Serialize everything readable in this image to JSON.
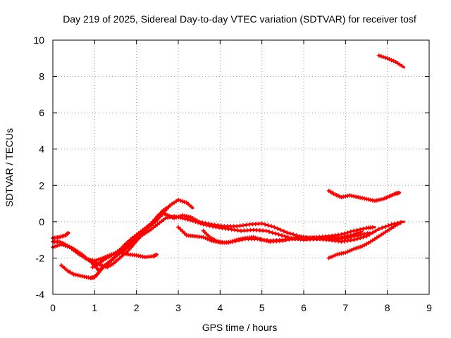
{
  "chart_data": {
    "type": "line",
    "title": "Day 219 of 2025, Sidereal Day-to-day VTEC variation (SDTVAR) for receiver tosf",
    "xlabel": "GPS time / hours",
    "ylabel": "SDTVAR / TECUs",
    "xlim": [
      0,
      9
    ],
    "ylim": [
      -4,
      10
    ],
    "xticks": [
      0,
      1,
      2,
      3,
      4,
      5,
      6,
      7,
      8,
      9
    ],
    "yticks": [
      -4,
      -2,
      0,
      2,
      4,
      6,
      8,
      10
    ],
    "grid": true,
    "marker": "plus",
    "color": "#ff0000",
    "series": [
      {
        "name": "arc-1",
        "points": [
          [
            0.0,
            -0.9
          ],
          [
            0.15,
            -0.85
          ],
          [
            0.3,
            -0.75
          ],
          [
            0.38,
            -0.6
          ]
        ]
      },
      {
        "name": "arc-2",
        "points": [
          [
            0.0,
            -1.4
          ],
          [
            0.2,
            -1.25
          ],
          [
            0.4,
            -1.4
          ],
          [
            0.6,
            -1.75
          ],
          [
            0.8,
            -2.05
          ],
          [
            1.0,
            -2.15
          ],
          [
            1.2,
            -2.0
          ],
          [
            1.4,
            -1.8
          ],
          [
            1.6,
            -1.7
          ],
          [
            1.8,
            -1.8
          ],
          [
            2.0,
            -1.85
          ],
          [
            2.2,
            -1.95
          ],
          [
            2.4,
            -1.9
          ],
          [
            2.5,
            -1.8
          ]
        ]
      },
      {
        "name": "arc-3",
        "points": [
          [
            0.0,
            -1.1
          ],
          [
            0.15,
            -1.1
          ],
          [
            0.3,
            -1.25
          ],
          [
            0.5,
            -1.5
          ],
          [
            0.7,
            -1.8
          ],
          [
            0.85,
            -2.1
          ],
          [
            1.0,
            -2.4
          ],
          [
            1.1,
            -2.7
          ],
          [
            1.2,
            -2.5
          ],
          [
            1.35,
            -2.2
          ],
          [
            1.5,
            -1.9
          ],
          [
            1.7,
            -1.6
          ],
          [
            1.9,
            -1.2
          ],
          [
            2.1,
            -0.7
          ],
          [
            2.3,
            -0.3
          ],
          [
            2.5,
            0.1
          ],
          [
            2.65,
            0.5
          ],
          [
            2.8,
            0.9
          ],
          [
            3.0,
            1.2
          ],
          [
            3.2,
            1.05
          ],
          [
            3.35,
            0.75
          ]
        ]
      },
      {
        "name": "arc-4",
        "points": [
          [
            0.2,
            -2.4
          ],
          [
            0.35,
            -2.7
          ],
          [
            0.5,
            -2.9
          ],
          [
            0.7,
            -3.0
          ],
          [
            0.9,
            -3.1
          ],
          [
            1.0,
            -3.05
          ],
          [
            1.1,
            -2.8
          ],
          [
            1.25,
            -2.4
          ],
          [
            1.45,
            -2.05
          ],
          [
            1.6,
            -1.65
          ],
          [
            1.8,
            -1.25
          ],
          [
            2.0,
            -0.8
          ],
          [
            2.2,
            -0.4
          ],
          [
            2.35,
            -0.1
          ],
          [
            2.5,
            0.3
          ],
          [
            2.65,
            0.65
          ],
          [
            2.8,
            0.85
          ]
        ]
      },
      {
        "name": "arc-5",
        "points": [
          [
            0.95,
            -2.5
          ],
          [
            1.1,
            -2.3
          ],
          [
            1.25,
            -2.05
          ],
          [
            1.4,
            -1.85
          ],
          [
            1.6,
            -1.55
          ],
          [
            1.75,
            -1.2
          ],
          [
            1.9,
            -0.9
          ],
          [
            2.1,
            -0.55
          ],
          [
            2.3,
            -0.2
          ],
          [
            2.5,
            0.2
          ],
          [
            2.6,
            0.5
          ],
          [
            2.75,
            0.35
          ],
          [
            2.9,
            0.2
          ],
          [
            3.1,
            0.35
          ],
          [
            3.3,
            0.25
          ],
          [
            3.5,
            0.0
          ],
          [
            3.8,
            -0.15
          ],
          [
            4.1,
            -0.25
          ],
          [
            4.4,
            -0.25
          ],
          [
            4.7,
            -0.15
          ],
          [
            5.0,
            -0.1
          ],
          [
            5.3,
            -0.3
          ],
          [
            5.6,
            -0.6
          ],
          [
            5.9,
            -0.8
          ],
          [
            6.1,
            -0.9
          ],
          [
            6.3,
            -0.85
          ],
          [
            6.6,
            -0.8
          ],
          [
            6.9,
            -0.7
          ],
          [
            7.2,
            -0.5
          ],
          [
            7.5,
            -0.35
          ],
          [
            7.7,
            -0.3
          ]
        ]
      },
      {
        "name": "arc-6",
        "points": [
          [
            1.0,
            -2.25
          ],
          [
            1.15,
            -2.4
          ],
          [
            1.3,
            -2.5
          ],
          [
            1.45,
            -2.3
          ],
          [
            1.6,
            -2.0
          ],
          [
            1.8,
            -1.6
          ],
          [
            1.95,
            -1.2
          ],
          [
            2.1,
            -0.8
          ],
          [
            2.3,
            -0.5
          ],
          [
            2.5,
            -0.15
          ],
          [
            2.7,
            0.2
          ],
          [
            2.9,
            0.3
          ],
          [
            3.1,
            0.2
          ],
          [
            3.35,
            0.05
          ],
          [
            3.6,
            -0.15
          ],
          [
            3.9,
            -0.3
          ],
          [
            4.2,
            -0.4
          ],
          [
            4.5,
            -0.5
          ],
          [
            4.8,
            -0.45
          ],
          [
            5.1,
            -0.5
          ],
          [
            5.4,
            -0.7
          ],
          [
            5.7,
            -0.9
          ],
          [
            6.0,
            -1.0
          ],
          [
            6.3,
            -0.95
          ],
          [
            6.6,
            -0.9
          ],
          [
            6.9,
            -0.85
          ],
          [
            7.2,
            -0.7
          ],
          [
            7.4,
            -0.55
          ]
        ]
      },
      {
        "name": "arc-7",
        "points": [
          [
            3.0,
            -0.3
          ],
          [
            3.2,
            -0.75
          ],
          [
            3.4,
            -0.8
          ],
          [
            3.6,
            -0.85
          ],
          [
            3.8,
            -1.05
          ],
          [
            4.0,
            -1.15
          ],
          [
            4.2,
            -1.15
          ],
          [
            4.4,
            -1.0
          ],
          [
            4.6,
            -0.9
          ],
          [
            4.8,
            -0.85
          ],
          [
            5.0,
            -1.0
          ],
          [
            5.2,
            -1.1
          ],
          [
            5.5,
            -1.05
          ],
          [
            5.8,
            -0.9
          ],
          [
            6.0,
            -0.85
          ],
          [
            6.3,
            -0.9
          ],
          [
            6.6,
            -1.0
          ],
          [
            6.9,
            -1.1
          ],
          [
            7.2,
            -1.0
          ],
          [
            7.5,
            -0.8
          ],
          [
            7.8,
            -0.4
          ],
          [
            8.1,
            -0.15
          ],
          [
            8.4,
            0.0
          ]
        ]
      },
      {
        "name": "arc-8",
        "points": [
          [
            3.6,
            -0.5
          ],
          [
            3.75,
            -0.85
          ],
          [
            3.9,
            -1.05
          ],
          [
            4.1,
            -1.15
          ],
          [
            4.3,
            -1.1
          ],
          [
            4.6,
            -0.95
          ],
          [
            4.9,
            -0.95
          ],
          [
            5.2,
            -1.05
          ],
          [
            5.5,
            -1.0
          ],
          [
            5.8,
            -0.95
          ],
          [
            6.1,
            -0.9
          ],
          [
            6.4,
            -0.95
          ],
          [
            6.7,
            -1.0
          ],
          [
            7.0,
            -0.9
          ],
          [
            7.3,
            -0.75
          ],
          [
            7.6,
            -0.6
          ]
        ]
      },
      {
        "name": "arc-9",
        "points": [
          [
            6.6,
            -2.0
          ],
          [
            6.8,
            -1.8
          ],
          [
            7.0,
            -1.7
          ],
          [
            7.2,
            -1.5
          ],
          [
            7.4,
            -1.35
          ],
          [
            7.6,
            -1.1
          ],
          [
            7.8,
            -0.8
          ],
          [
            8.0,
            -0.5
          ],
          [
            8.2,
            -0.2
          ],
          [
            8.35,
            0.0
          ]
        ]
      },
      {
        "name": "arc-10",
        "points": [
          [
            6.6,
            1.7
          ],
          [
            6.75,
            1.5
          ],
          [
            6.9,
            1.35
          ],
          [
            7.1,
            1.45
          ],
          [
            7.3,
            1.35
          ],
          [
            7.5,
            1.25
          ],
          [
            7.7,
            1.15
          ],
          [
            7.9,
            1.25
          ],
          [
            8.05,
            1.4
          ],
          [
            8.2,
            1.55
          ],
          [
            8.3,
            1.6
          ]
        ]
      },
      {
        "name": "arc-11",
        "points": [
          [
            7.8,
            9.15
          ],
          [
            8.0,
            9.0
          ],
          [
            8.2,
            8.8
          ],
          [
            8.4,
            8.5
          ]
        ]
      }
    ]
  }
}
